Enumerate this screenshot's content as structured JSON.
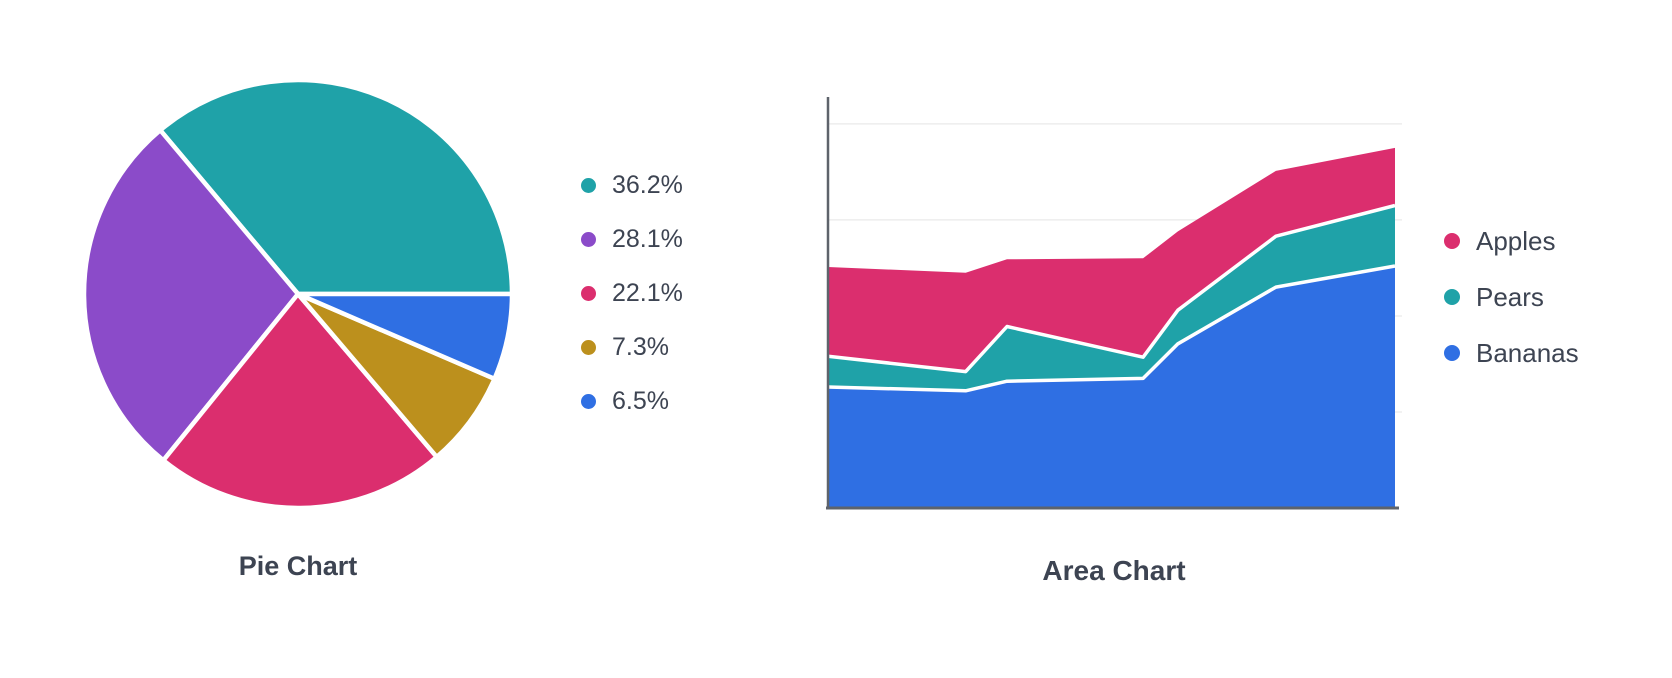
{
  "page": {
    "background": "#ffffff",
    "text_color": "#3D4452",
    "axis_color": "#5E636B",
    "gridline_color": "#ededed",
    "separator_color": "#ffffff"
  },
  "chart_data": [
    {
      "type": "pie",
      "title": "Pie Chart",
      "legend_position": "right",
      "start_angle_deg": 0,
      "direction": "counterclockwise",
      "slices": [
        {
          "label": "36.2%",
          "value": 36.2,
          "color": "#1FA2A8"
        },
        {
          "label": "28.1%",
          "value": 28.1,
          "color": "#8B4BC9"
        },
        {
          "label": "22.1%",
          "value": 22.1,
          "color": "#DB2E6E"
        },
        {
          "label": "7.3%",
          "value": 7.3,
          "color": "#BC901D"
        },
        {
          "label": "6.5%",
          "value": 6.5,
          "color": "#2F6FE3"
        }
      ]
    },
    {
      "type": "area",
      "title": "Area Chart",
      "stacked": true,
      "legend_position": "right",
      "grid": "horizontal-only",
      "x": [
        0,
        3.4,
        4.42,
        7.78,
        8.64,
        11.06,
        14
      ],
      "xlim": [
        0,
        14
      ],
      "ylim": [
        0,
        42.8
      ],
      "gridlines_y": [
        10,
        20,
        30,
        40
      ],
      "series": [
        {
          "name": "Apples",
          "color": "#DB2E6E",
          "values": [
            9.3,
            10.3,
            7.0,
            10.3,
            8.2,
            6.8,
            6.0
          ]
        },
        {
          "name": "Pears",
          "color": "#1FA2A8",
          "values": [
            3.2,
            2.0,
            5.7,
            2.2,
            3.5,
            5.3,
            6.3
          ]
        },
        {
          "name": "Bananas",
          "color": "#2F6FE3",
          "values": [
            12.6,
            12.2,
            13.2,
            13.5,
            17.1,
            23.0,
            25.2
          ]
        }
      ]
    }
  ]
}
